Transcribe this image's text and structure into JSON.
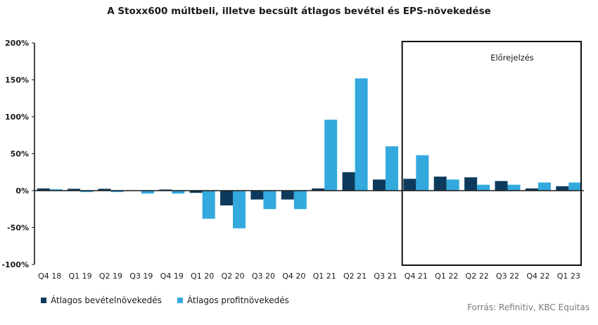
{
  "chart_data": {
    "type": "bar",
    "title": "A Stoxx600 múltbeli, illetve becsült átlagos bevétel és EPS-növekedése",
    "categories": [
      "Q4 18",
      "Q1 19",
      "Q2 19",
      "Q3 19",
      "Q4 19",
      "Q1 20",
      "Q2 20",
      "Q3 20",
      "Q4 20",
      "Q1 21",
      "Q2 21",
      "Q3 21",
      "Q4 21",
      "Q1 22",
      "Q2 22",
      "Q3 22",
      "Q4 22",
      "Q1 23"
    ],
    "series": [
      {
        "name": "Átlagos bevételnövekedés",
        "color": "#0d3a5c",
        "values": [
          3,
          2.5,
          2.5,
          0.5,
          1.5,
          -3,
          -20,
          -12,
          -12,
          3,
          25,
          15,
          16,
          19,
          18,
          13,
          3,
          6
        ]
      },
      {
        "name": "Átlagos profitnövekedés",
        "color": "#33a9dd",
        "values": [
          2,
          -2,
          -2,
          -4,
          -4,
          -38,
          -51,
          -25,
          -25,
          96,
          152,
          60,
          48,
          15,
          8,
          8,
          11,
          11
        ]
      }
    ],
    "ylim": [
      -100,
      200
    ],
    "yticks": [
      -100,
      -50,
      0,
      50,
      100,
      150,
      200
    ],
    "ytick_format": "percent",
    "forecast_label": "Előrejelzés",
    "forecast_start_index": 12,
    "source": "Forrás: Refinitiv, KBC Equitas"
  }
}
